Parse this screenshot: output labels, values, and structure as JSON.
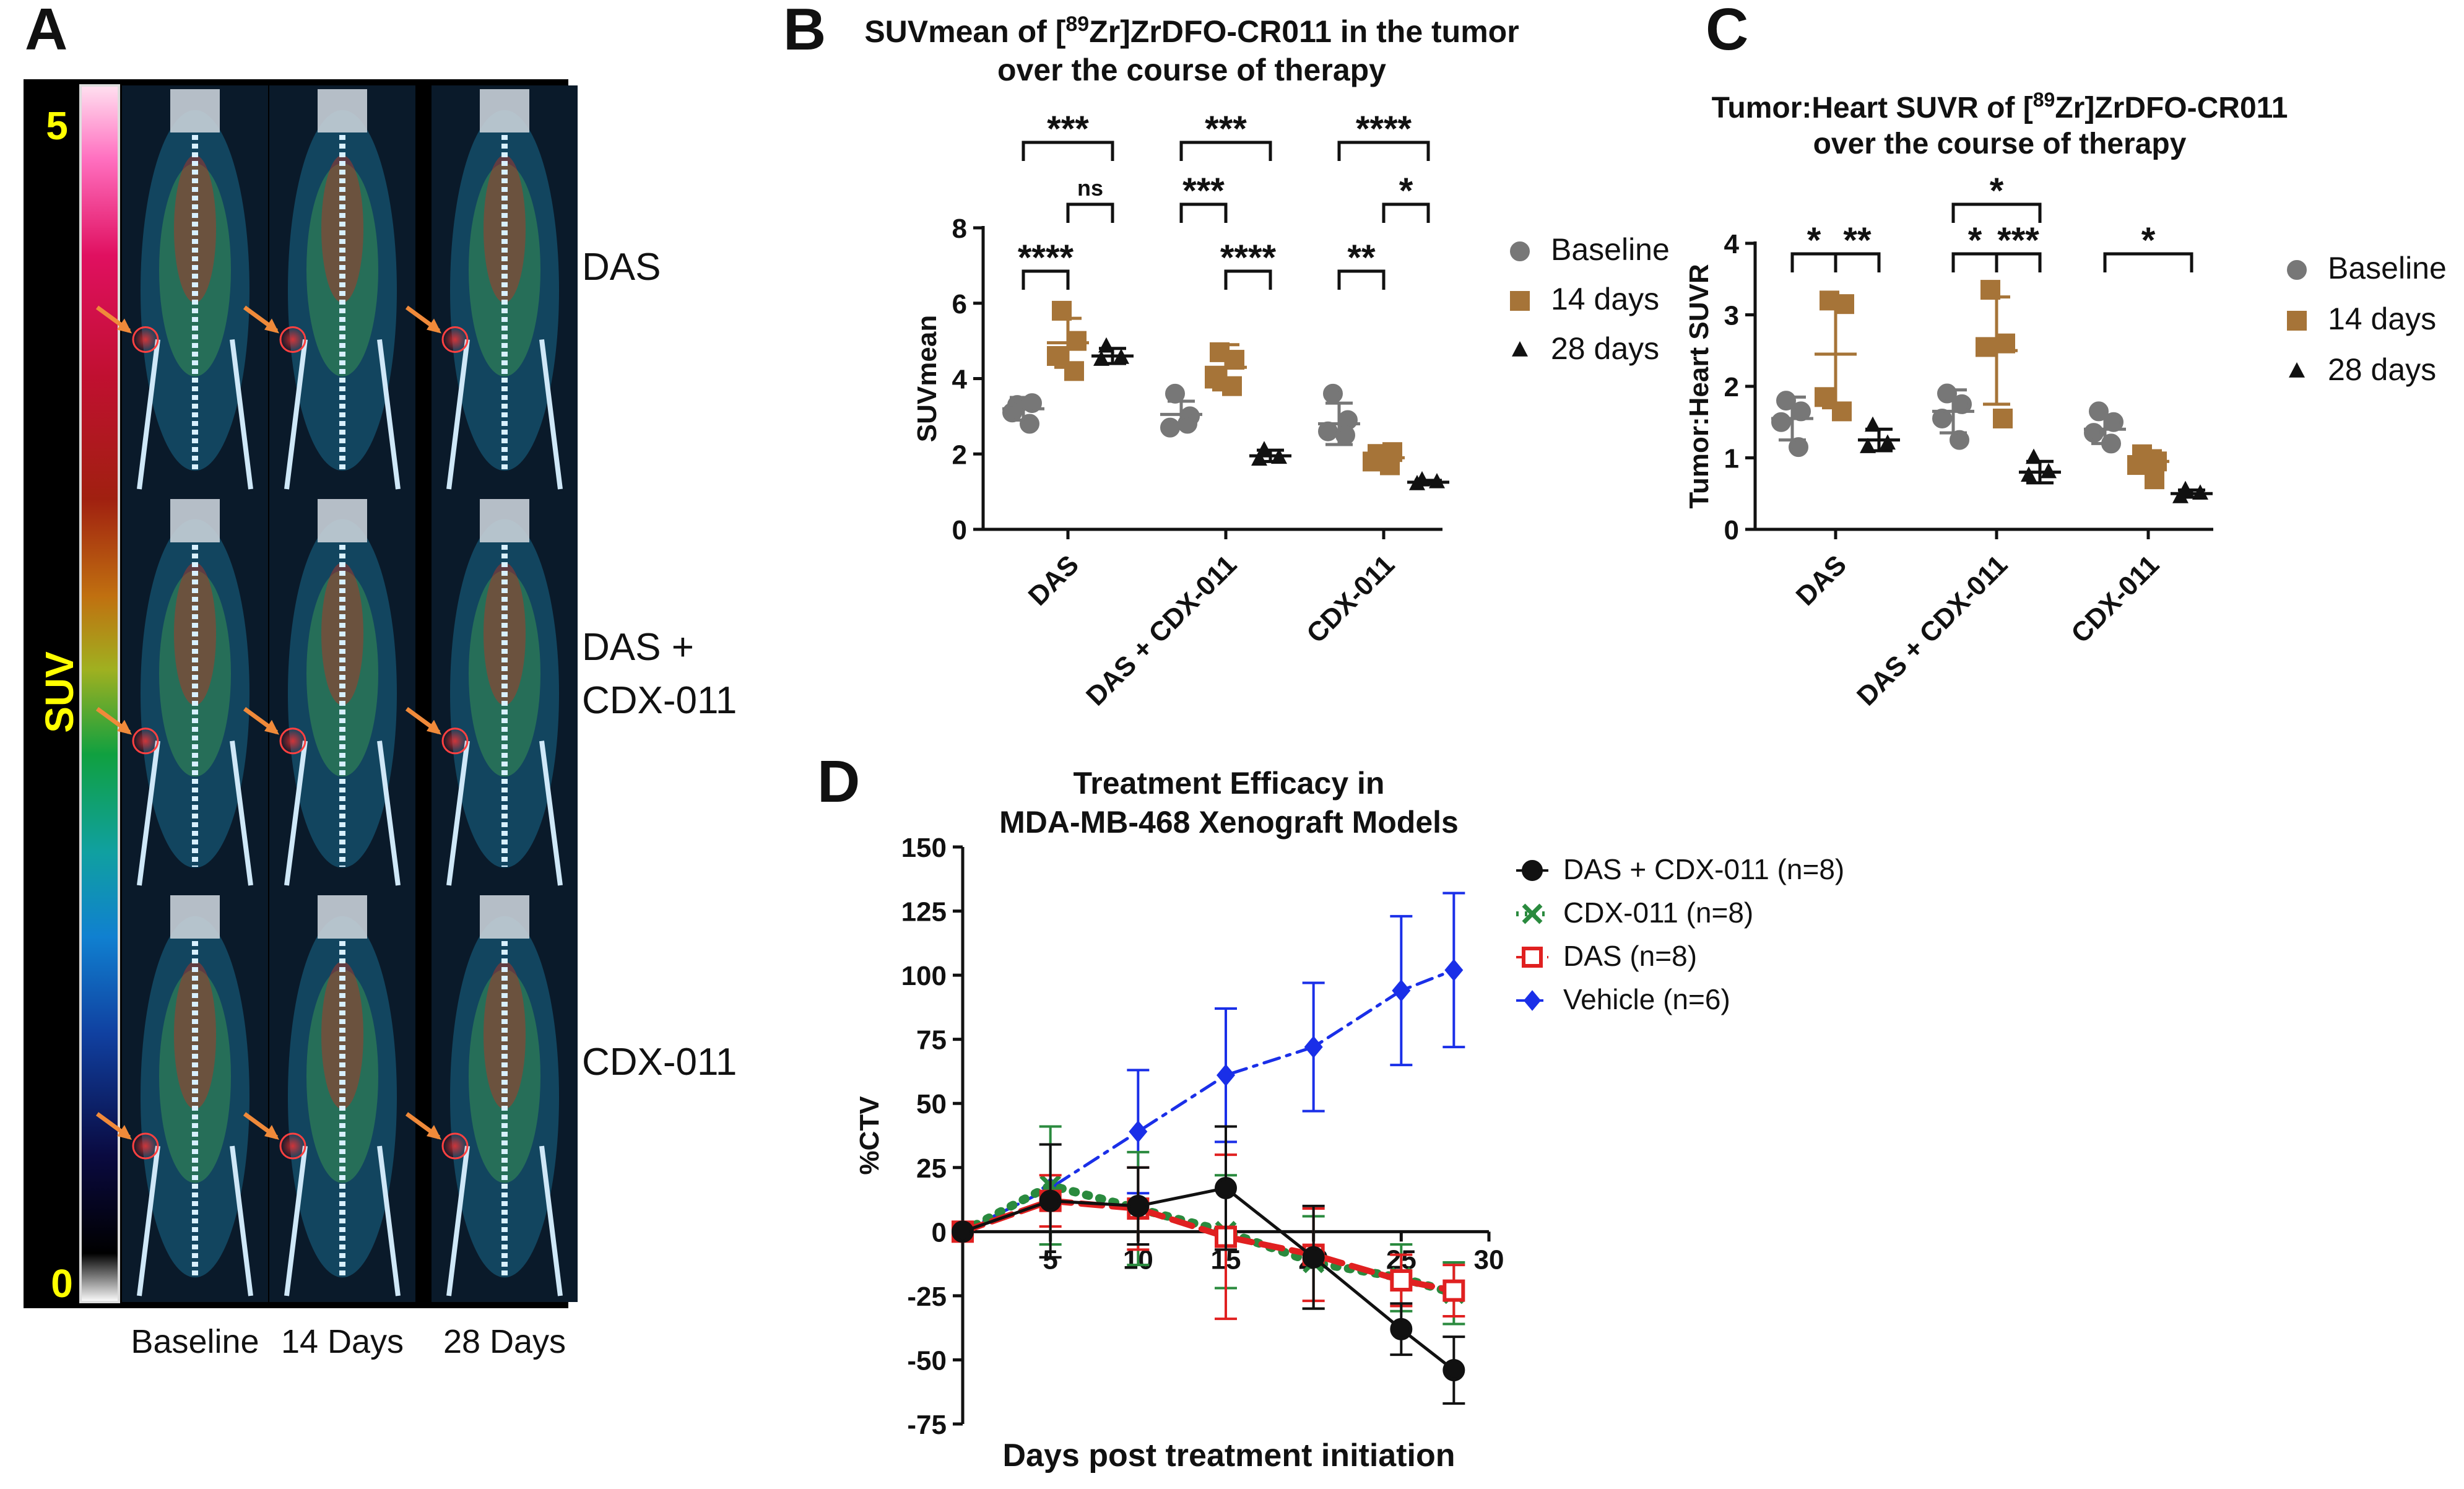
{
  "panel_a": {
    "letter": "A",
    "scale_label": "SUV",
    "scale_max": "5",
    "scale_min": "0",
    "row_labels": [
      "DAS",
      "DAS +\nCDX-011",
      "CDX-011"
    ],
    "col_labels": [
      "Baseline",
      "14 Days",
      "28 Days"
    ],
    "colors": {
      "scale_text": "#ffff00",
      "arrow": "#f08a3a"
    }
  },
  "chart_data": [
    {
      "id": "B",
      "type": "scatter",
      "letter": "B",
      "title_pre": "SUVmean of [",
      "title_sup": "89",
      "title_post": "Zr]ZrDFO-CR011 in the tumor",
      "title_line2": "over the course of therapy",
      "xlabel": "",
      "ylabel": "SUVmean",
      "ylim": [
        0,
        8
      ],
      "yticks": [
        0,
        2,
        4,
        6,
        8
      ],
      "categories": [
        "DAS",
        "DAS + CDX-011",
        "CDX-011"
      ],
      "series": [
        {
          "name": "Baseline",
          "color": "#777777",
          "marker": "circle",
          "mean": [
            3.2,
            3.05,
            2.8
          ],
          "sd": [
            0.3,
            0.35,
            0.55
          ],
          "points": [
            [
              3.3,
              3.35,
              3.1,
              2.8
            ],
            [
              3.6,
              3.0,
              2.7,
              2.8
            ],
            [
              3.6,
              2.9,
              2.6,
              2.5
            ]
          ]
        },
        {
          "name": "14 days",
          "color": "#a67438",
          "marker": "square",
          "mean": [
            4.95,
            4.3,
            1.9
          ],
          "sd": [
            0.65,
            0.6,
            0.15
          ],
          "points": [
            [
              5.8,
              5.0,
              4.6,
              4.2
            ],
            [
              4.7,
              4.5,
              4.0,
              3.8
            ],
            [
              2.0,
              2.05,
              1.8,
              1.7
            ]
          ]
        },
        {
          "name": "28 days",
          "color": "#111111",
          "marker": "triangle",
          "mean": [
            4.6,
            1.95
          ],
          "sd": [
            0.2,
            0.15
          ],
          "points": [
            [
              4.85,
              4.55,
              4.5
            ],
            [
              2.1,
              1.9,
              1.85
            ]
          ],
          "x_offsets": [
            0.25,
            0.25
          ],
          "cats": [
            0,
            1
          ]
        },
        {
          "name": "28 days",
          "color": "#111111",
          "marker": "triangle",
          "mean": [
            1.25
          ],
          "sd": [
            0.05
          ],
          "points": [
            [
              1.3,
              1.25,
              1.2
            ]
          ],
          "cats": [
            2
          ],
          "hide_legend": true
        }
      ],
      "significance": [
        {
          "from": [
            0,
            0
          ],
          "to": [
            0,
            2
          ],
          "label": "***",
          "level": 1
        },
        {
          "from": [
            0,
            1
          ],
          "to": [
            0,
            2
          ],
          "label": "ns",
          "level": 2
        },
        {
          "from": [
            0,
            0
          ],
          "to": [
            0,
            1
          ],
          "label": "****",
          "level": 3
        },
        {
          "from": [
            1,
            0
          ],
          "to": [
            1,
            2
          ],
          "label": "***",
          "level": 1
        },
        {
          "from": [
            1,
            0
          ],
          "to": [
            1,
            1
          ],
          "label": "***",
          "level": 2
        },
        {
          "from": [
            1,
            1
          ],
          "to": [
            1,
            2
          ],
          "label": "****",
          "level": 3
        },
        {
          "from": [
            2,
            0
          ],
          "to": [
            2,
            2
          ],
          "label": "****",
          "level": 1
        },
        {
          "from": [
            2,
            1
          ],
          "to": [
            2,
            2
          ],
          "label": "*",
          "level": 2
        },
        {
          "from": [
            2,
            0
          ],
          "to": [
            2,
            1
          ],
          "label": "**",
          "level": 3
        }
      ]
    },
    {
      "id": "C",
      "type": "scatter",
      "letter": "C",
      "title_pre": "Tumor:Heart SUVR of [",
      "title_sup": "89",
      "title_post": "Zr]ZrDFO-CR011",
      "title_line2": "over the course of therapy",
      "xlabel": "",
      "ylabel": "Tumor:Heart SUVR",
      "ylim": [
        0,
        4
      ],
      "yticks": [
        0,
        1,
        2,
        3,
        4
      ],
      "categories": [
        "DAS",
        "DAS + CDX-011",
        "CDX-011"
      ],
      "series": [
        {
          "name": "Baseline",
          "color": "#777777",
          "marker": "circle",
          "mean": [
            1.55,
            1.65,
            1.4
          ],
          "sd": [
            0.3,
            0.3,
            0.2
          ],
          "points": [
            [
              1.8,
              1.65,
              1.5,
              1.15
            ],
            [
              1.9,
              1.75,
              1.55,
              1.25
            ],
            [
              1.65,
              1.5,
              1.35,
              1.2
            ]
          ]
        },
        {
          "name": "14 days",
          "color": "#a67438",
          "marker": "square",
          "mean": [
            2.45,
            2.5,
            0.95
          ],
          "sd": [
            0.75,
            0.75,
            0.15
          ],
          "points": [
            [
              3.2,
              3.15,
              1.85,
              1.65
            ],
            [
              3.35,
              2.6,
              2.55,
              1.55
            ],
            [
              1.05,
              0.95,
              0.9,
              0.7
            ]
          ]
        },
        {
          "name": "28 days",
          "color": "#111111",
          "marker": "triangle",
          "mean": [
            1.25,
            0.8,
            0.5
          ],
          "sd": [
            0.15,
            0.15,
            0.05
          ],
          "points": [
            [
              1.45,
              1.2,
              1.15
            ],
            [
              1.0,
              0.8,
              0.75
            ],
            [
              0.55,
              0.5,
              0.45
            ]
          ]
        }
      ],
      "significance": [
        {
          "from": [
            0,
            0
          ],
          "to": [
            0,
            1
          ],
          "label": "*",
          "level": 3
        },
        {
          "from": [
            0,
            1
          ],
          "to": [
            0,
            2
          ],
          "label": "**",
          "level": 3
        },
        {
          "from": [
            1,
            0
          ],
          "to": [
            1,
            2
          ],
          "label": "*",
          "level": 1
        },
        {
          "from": [
            1,
            0
          ],
          "to": [
            1,
            1
          ],
          "label": "*",
          "level": 3
        },
        {
          "from": [
            1,
            1
          ],
          "to": [
            1,
            2
          ],
          "label": "***",
          "level": 3
        },
        {
          "from": [
            2,
            0
          ],
          "to": [
            2,
            2
          ],
          "label": "*",
          "level": 3
        }
      ]
    },
    {
      "id": "D",
      "type": "line",
      "letter": "D",
      "title": "Treatment Efficacy in",
      "title_line2": "MDA-MB-468 Xenograft Models",
      "xlabel": "Days post treatment initiation",
      "ylabel": "%CTV",
      "xlim": [
        0,
        30
      ],
      "ylim": [
        -75,
        150
      ],
      "xticks": [
        5,
        10,
        15,
        20,
        25,
        30
      ],
      "yticks": [
        -75,
        -50,
        -25,
        0,
        25,
        50,
        75,
        100,
        125,
        150
      ],
      "series": [
        {
          "name": "DAS + CDX-011 (n=8)",
          "color": "#111111",
          "marker": "circle",
          "style": "solid",
          "x": [
            0,
            5,
            10,
            15,
            20,
            25,
            28
          ],
          "y": [
            0,
            12,
            10,
            17,
            -10,
            -38,
            -54
          ],
          "err": [
            0,
            22,
            15,
            24,
            20,
            10,
            13
          ]
        },
        {
          "name": "CDX-011 (n=8)",
          "color": "#2a8a3e",
          "marker": "x",
          "style": "dotted",
          "x": [
            0,
            5,
            10,
            15,
            20,
            25,
            28
          ],
          "y": [
            0,
            18,
            9,
            0,
            -12,
            -18,
            -24
          ],
          "err": [
            0,
            23,
            22,
            22,
            18,
            13,
            12
          ]
        },
        {
          "name": "DAS (n=8)",
          "color": "#e02020",
          "marker": "square",
          "style": "dashed",
          "x": [
            0,
            5,
            10,
            15,
            20,
            25,
            28
          ],
          "y": [
            0,
            12,
            9,
            -2,
            -9,
            -19,
            -23
          ],
          "err": [
            0,
            10,
            16,
            32,
            18,
            10,
            10
          ]
        },
        {
          "name": "Vehicle (n=6)",
          "color": "#1a2fe8",
          "marker": "diamond",
          "style": "dashdot",
          "x": [
            0,
            5,
            10,
            15,
            20,
            25,
            28
          ],
          "y": [
            0,
            17,
            39,
            61,
            72,
            94,
            102
          ],
          "err": [
            0,
            0,
            24,
            26,
            25,
            29,
            30
          ]
        }
      ]
    }
  ]
}
